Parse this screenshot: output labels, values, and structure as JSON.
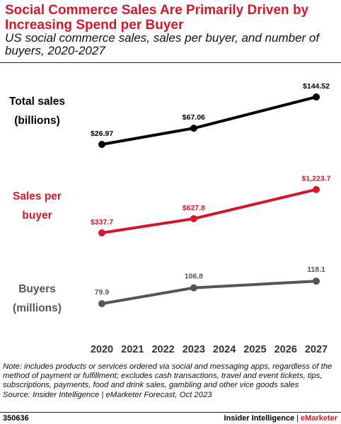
{
  "title": "Social Commerce Sales Are Primarily Driven by Increasing Spend per Buyer",
  "subtitle": "US social commerce sales, sales per buyer, and number of buyers, 2020-2027",
  "note": "Note: includes products or services ordered via social and messaging apps, regardless of the method of payment or fulfillment; excludes cash transactions, travel and event tickets, tips, subscriptions, payments, food and drink sales, gambling and other vice goods sales",
  "source": "Source: Insider Intelligence | eMarketer Forecast, Oct 2023",
  "footer": {
    "chart_id": "350636",
    "brand_left": "Insider Intelligence",
    "brand_sep": "|",
    "brand_right": "eMarketer"
  },
  "colors": {
    "accent": "#d3172a",
    "total_sales": "#000000",
    "sales_per_buyer": "#d3172a",
    "buyers": "#555555"
  },
  "chart_data": {
    "type": "line",
    "x": [
      2020,
      2021,
      2022,
      2023,
      2024,
      2025,
      2026,
      2027
    ],
    "grid": false,
    "series": [
      {
        "key": "total_sales",
        "label_line1": "Total sales",
        "label_line2": "(billions)",
        "points": [
          {
            "x": 2020,
            "y": 26.97,
            "label": "$26.97"
          },
          {
            "x": 2023,
            "y": 67.06,
            "label": "$67.06"
          },
          {
            "x": 2027,
            "y": 144.52,
            "label": "$144.52"
          }
        ]
      },
      {
        "key": "sales_per_buyer",
        "label_line1": "Sales per",
        "label_line2": "buyer",
        "points": [
          {
            "x": 2020,
            "y": 337.7,
            "label": "$337.7"
          },
          {
            "x": 2023,
            "y": 627.8,
            "label": "$627.8"
          },
          {
            "x": 2027,
            "y": 1223.7,
            "label": "$1,223.7"
          }
        ]
      },
      {
        "key": "buyers",
        "label_line1": "Buyers",
        "label_line2": "(millions)",
        "points": [
          {
            "x": 2020,
            "y": 79.9,
            "label": "79.9"
          },
          {
            "x": 2023,
            "y": 106.8,
            "label": "106.8"
          },
          {
            "x": 2027,
            "y": 118.1,
            "label": "118.1"
          }
        ]
      }
    ]
  }
}
